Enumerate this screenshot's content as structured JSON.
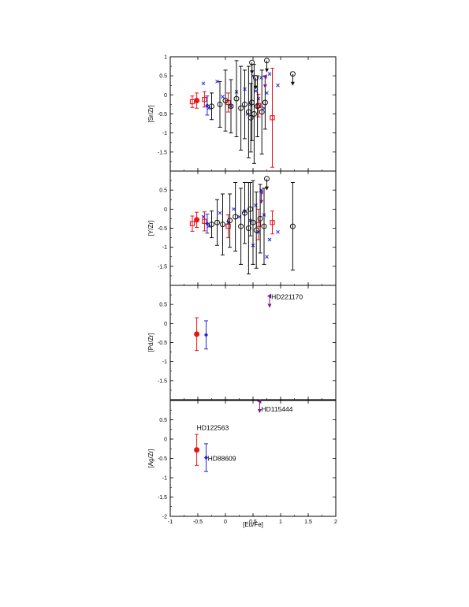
{
  "chart_data": {
    "type": "scatter",
    "xlabel": "[Eu/Fe]",
    "xlim": [
      -1,
      2
    ],
    "xticks": [
      -1,
      -0.5,
      0,
      0.5,
      1,
      1.5,
      2
    ],
    "xtick_labels": [
      "-1",
      "-0.5",
      "0",
      "0.5",
      "1",
      "1.5",
      "2"
    ],
    "colors": {
      "red": "#e8141c",
      "blue": "#2424d8",
      "black": "#111111",
      "purple": "#7a1a8c"
    },
    "panels": [
      {
        "id": "srzr",
        "ylabel": "[Sr/Zr]",
        "ylim": [
          -2,
          1
        ],
        "yticks": [
          1,
          0.5,
          0,
          -0.5,
          -1,
          -1.5
        ],
        "ytick_labels": [
          "1",
          "0.5",
          "0",
          "-0.5",
          "-1",
          "-1.5"
        ],
        "series": [
          {
            "marker": "circle-filled",
            "color": "red",
            "points": [
              {
                "x": -0.52,
                "y": -0.15,
                "err": 0.2
              }
            ]
          },
          {
            "marker": "square-open",
            "color": "red",
            "points": [
              {
                "x": -0.6,
                "y": -0.18,
                "err": 0.15
              },
              {
                "x": -0.38,
                "y": -0.12,
                "err": 0.2
              },
              {
                "x": 0.05,
                "y": -0.2,
                "err": 0.25
              },
              {
                "x": 0.6,
                "y": -0.28,
                "err": 0.3
              },
              {
                "x": 0.85,
                "y": -0.6,
                "err": 1.3
              }
            ]
          },
          {
            "marker": "diamond-filled",
            "color": "blue",
            "points": [
              {
                "x": -0.33,
                "y": -0.28,
                "err": 0.25
              }
            ]
          },
          {
            "marker": "cross",
            "color": "blue",
            "points": [
              {
                "x": -0.4,
                "y": 0.3
              },
              {
                "x": -0.3,
                "y": -0.35
              },
              {
                "x": -0.15,
                "y": 0.35
              },
              {
                "x": -0.05,
                "y": -0.05
              },
              {
                "x": 0.1,
                "y": -0.3
              },
              {
                "x": 0.2,
                "y": 0.08
              },
              {
                "x": 0.35,
                "y": 0.15
              },
              {
                "x": 0.45,
                "y": -0.25
              },
              {
                "x": 0.5,
                "y": 0.5
              },
              {
                "x": 0.55,
                "y": 0.1
              },
              {
                "x": 0.6,
                "y": -0.1
              },
              {
                "x": 0.65,
                "y": 0.45
              },
              {
                "x": 0.7,
                "y": -0.35
              },
              {
                "x": 0.75,
                "y": 0.05
              },
              {
                "x": 0.8,
                "y": 0.55
              },
              {
                "x": 0.95,
                "y": 0.25
              },
              {
                "x": 0.4,
                "y": -0.5
              }
            ]
          },
          {
            "marker": "circle-open",
            "color": "black",
            "points": [
              {
                "x": -0.25,
                "y": -0.3,
                "err": 0.35
              },
              {
                "x": -0.1,
                "y": -0.25,
                "err": 0.6
              },
              {
                "x": 0.0,
                "y": -0.15,
                "err": 0.8
              },
              {
                "x": 0.1,
                "y": -0.3,
                "err": 0.7
              },
              {
                "x": 0.2,
                "y": -0.1,
                "err": 1.0
              },
              {
                "x": 0.28,
                "y": -0.35,
                "err": 1.1
              },
              {
                "x": 0.35,
                "y": -0.25,
                "err": 0.9
              },
              {
                "x": 0.42,
                "y": -0.45,
                "err": 1.2
              },
              {
                "x": 0.48,
                "y": -0.2,
                "err": 1.0
              },
              {
                "x": 0.52,
                "y": -0.5,
                "err": 1.3
              },
              {
                "x": 0.58,
                "y": -0.3,
                "err": 0.8
              },
              {
                "x": 0.66,
                "y": -0.45,
                "err": 1.1
              },
              {
                "x": 0.72,
                "y": -0.2,
                "err": 0.7
              },
              {
                "x": 0.46,
                "y": -0.6,
                "err": 0.9
              }
            ]
          },
          {
            "marker": "circle-open",
            "color": "black",
            "limit": "upper",
            "points": [
              {
                "x": 0.48,
                "y": 0.85
              },
              {
                "x": 0.75,
                "y": 0.9
              },
              {
                "x": 1.22,
                "y": 0.55
              },
              {
                "x": 0.55,
                "y": 0.45
              }
            ]
          },
          {
            "marker": "triangle-left",
            "color": "purple",
            "limit": "upper",
            "points": [
              {
                "x": 0.72,
                "y": 0.48
              }
            ]
          }
        ]
      },
      {
        "id": "yzr",
        "ylabel": "[Y/Zr]",
        "ylim": [
          -2,
          1
        ],
        "yticks": [
          0.5,
          0,
          -0.5,
          -1,
          -1.5
        ],
        "ytick_labels": [
          "0.5",
          "0",
          "-0.5",
          "-1",
          "-1.5"
        ],
        "series": [
          {
            "marker": "circle-filled",
            "color": "red",
            "points": [
              {
                "x": -0.52,
                "y": -0.28,
                "err": 0.2
              }
            ]
          },
          {
            "marker": "square-open",
            "color": "red",
            "points": [
              {
                "x": -0.6,
                "y": -0.38,
                "err": 0.2
              },
              {
                "x": -0.38,
                "y": -0.32,
                "err": 0.25
              },
              {
                "x": 0.05,
                "y": -0.45,
                "err": 0.3
              },
              {
                "x": 0.6,
                "y": -0.4,
                "err": 0.4
              },
              {
                "x": 0.85,
                "y": -0.35,
                "err": 0.3
              }
            ]
          },
          {
            "marker": "diamond-filled",
            "color": "blue",
            "points": [
              {
                "x": -0.33,
                "y": -0.38,
                "err": 0.25
              }
            ]
          },
          {
            "marker": "cross",
            "color": "blue",
            "points": [
              {
                "x": -0.4,
                "y": -0.2
              },
              {
                "x": -0.3,
                "y": -0.45
              },
              {
                "x": -0.1,
                "y": -0.1
              },
              {
                "x": 0.05,
                "y": -0.35
              },
              {
                "x": 0.15,
                "y": 0.0
              },
              {
                "x": 0.25,
                "y": -0.2
              },
              {
                "x": 0.35,
                "y": -0.05
              },
              {
                "x": 0.45,
                "y": -0.3
              },
              {
                "x": 0.55,
                "y": 0.1
              },
              {
                "x": 0.6,
                "y": -0.6
              },
              {
                "x": 0.65,
                "y": 0.5
              },
              {
                "x": 0.7,
                "y": -0.15
              },
              {
                "x": 0.75,
                "y": -1.25
              },
              {
                "x": 0.8,
                "y": -0.8
              },
              {
                "x": 0.95,
                "y": -0.6
              },
              {
                "x": 0.5,
                "y": -0.95
              }
            ]
          },
          {
            "marker": "circle-open",
            "color": "black",
            "points": [
              {
                "x": -0.25,
                "y": -0.4,
                "err": 0.35
              },
              {
                "x": -0.15,
                "y": -0.35,
                "err": 0.6
              },
              {
                "x": -0.05,
                "y": -0.4,
                "err": 0.8
              },
              {
                "x": 0.08,
                "y": -0.3,
                "err": 0.7
              },
              {
                "x": 0.18,
                "y": -0.2,
                "err": 0.9
              },
              {
                "x": 0.28,
                "y": -0.45,
                "err": 1.0
              },
              {
                "x": 0.35,
                "y": -0.1,
                "err": 0.8
              },
              {
                "x": 0.42,
                "y": -0.5,
                "err": 1.2
              },
              {
                "x": 0.5,
                "y": -0.35,
                "err": 1.1
              },
              {
                "x": 0.56,
                "y": -0.55,
                "err": 1.0
              },
              {
                "x": 0.63,
                "y": -0.25,
                "err": 0.9
              },
              {
                "x": 0.7,
                "y": -0.45,
                "err": 1.0
              },
              {
                "x": 0.45,
                "y": 0.0,
                "err": 0.7
              },
              {
                "x": 1.22,
                "y": -0.45,
                "err": 1.15
              }
            ]
          },
          {
            "marker": "circle-open",
            "color": "black",
            "limit": "upper",
            "points": [
              {
                "x": 0.75,
                "y": 0.8
              }
            ]
          },
          {
            "marker": "triangle-left",
            "color": "purple",
            "limit": "upper",
            "points": [
              {
                "x": 0.65,
                "y": 0.45
              }
            ]
          }
        ]
      },
      {
        "id": "pdzr",
        "ylabel": "[Pd/Zr]",
        "ylim": [
          -2,
          1
        ],
        "yticks": [
          0.5,
          0,
          -0.5,
          -1,
          -1.5
        ],
        "ytick_labels": [
          "0.5",
          "0",
          "-0.5",
          "-1",
          "-1.5"
        ],
        "series": [
          {
            "marker": "circle-filled",
            "color": "red",
            "points": [
              {
                "x": -0.52,
                "y": -0.28,
                "err": 0.43
              }
            ]
          },
          {
            "marker": "diamond-filled",
            "color": "blue",
            "points": [
              {
                "x": -0.35,
                "y": -0.3,
                "err": 0.37
              }
            ]
          },
          {
            "marker": "triangle-left",
            "color": "purple",
            "limit": "upper",
            "points": [
              {
                "x": 0.8,
                "y": 0.72
              }
            ]
          }
        ],
        "annotations": [
          {
            "text": "HD221170",
            "x": 0.83,
            "y": 0.7
          }
        ]
      },
      {
        "id": "agzr",
        "ylabel": "[Ag/Zr]",
        "ylim": [
          -2,
          1
        ],
        "yticks": [
          0.5,
          0,
          -0.5,
          -1,
          -1.5,
          -2
        ],
        "ytick_labels": [
          "0.5",
          "0",
          "-0.5",
          "-1",
          "-1.5",
          "-2"
        ],
        "series": [
          {
            "marker": "circle-filled",
            "color": "red",
            "points": [
              {
                "x": -0.52,
                "y": -0.28,
                "err": 0.4
              }
            ]
          },
          {
            "marker": "diamond-filled",
            "color": "blue",
            "points": [
              {
                "x": -0.35,
                "y": -0.48,
                "err": 0.36
              }
            ]
          },
          {
            "marker": "triangle-left",
            "color": "purple",
            "limit": "upper",
            "points": [
              {
                "x": 0.62,
                "y": 0.98
              }
            ]
          }
        ],
        "annotations": [
          {
            "text": "HD115444",
            "x": 0.65,
            "y": 0.78
          },
          {
            "text": "HD122563",
            "x": -0.52,
            "y": 0.3
          },
          {
            "text": "HD88609",
            "x": -0.32,
            "y": -0.5
          }
        ]
      }
    ]
  }
}
